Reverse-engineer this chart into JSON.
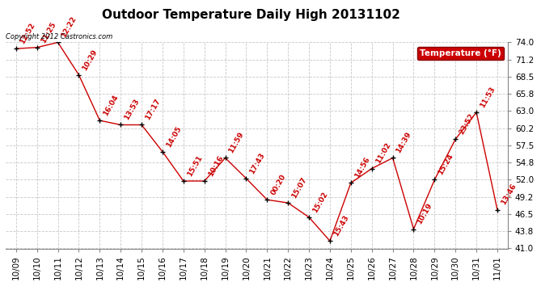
{
  "title": "Outdoor Temperature Daily High 20131102",
  "copyright_text": "Copyright 2012 Castronics.com",
  "legend_label": "Temperature (°F)",
  "x_labels": [
    "10/09",
    "10/10",
    "10/11",
    "10/12",
    "10/13",
    "10/14",
    "10/15",
    "10/16",
    "10/17",
    "10/18",
    "10/19",
    "10/20",
    "10/21",
    "10/22",
    "10/23",
    "10/24",
    "10/25",
    "10/26",
    "10/27",
    "10/28",
    "10/29",
    "10/30",
    "10/31",
    "11/01"
  ],
  "temperatures": [
    73.0,
    73.2,
    74.0,
    68.8,
    61.5,
    60.8,
    60.8,
    56.5,
    51.8,
    51.8,
    55.5,
    52.2,
    48.8,
    48.3,
    46.0,
    42.2,
    51.5,
    53.8,
    55.5,
    44.1,
    52.0,
    58.5,
    62.8,
    47.2
  ],
  "time_labels": [
    "12:52",
    "11:25",
    "12:22",
    "10:29",
    "16:04",
    "13:53",
    "17:17",
    "14:05",
    "15:51",
    "10:16",
    "11:59",
    "17:43",
    "00:20",
    "15:07",
    "15:02",
    "15:43",
    "14:56",
    "11:02",
    "14:39",
    "10:19",
    "15:24",
    "23:52",
    "11:53",
    "13:46"
  ],
  "ylim": [
    41.0,
    74.0
  ],
  "yticks": [
    41.0,
    43.8,
    46.5,
    49.2,
    52.0,
    54.8,
    57.5,
    60.2,
    63.0,
    65.8,
    68.5,
    71.2,
    74.0
  ],
  "line_color": "#cc0000",
  "marker_color": "#000000",
  "label_color": "#cc0000",
  "bg_color": "#ffffff",
  "grid_color": "#c8c8c8",
  "title_fontsize": 11,
  "label_fontsize": 6.5,
  "tick_fontsize": 7.5,
  "legend_bg": "#cc0000",
  "legend_text_color": "#ffffff"
}
